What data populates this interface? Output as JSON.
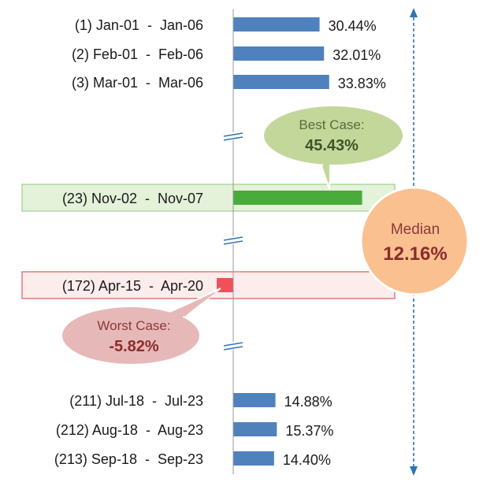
{
  "chart_data": {
    "type": "bar",
    "orientation": "horizontal",
    "categories": [
      "(1) Jan-01  -  Jan-06",
      "(2) Feb-01  -  Feb-06",
      "(3) Mar-01  -  Mar-06",
      "(23) Nov-02  -  Nov-07",
      "(172) Apr-15  -  Apr-20",
      "(211) Jul-18  -  Jul-23",
      "(212) Aug-18  -  Aug-23",
      "(213) Sep-18  -  Sep-23"
    ],
    "values": [
      30.44,
      32.01,
      33.83,
      45.43,
      -5.82,
      14.88,
      15.37,
      14.4
    ],
    "value_labels": [
      "30.44%",
      "32.01%",
      "33.83%",
      "",
      "",
      "14.88%",
      "15.37%",
      "14.40%"
    ],
    "highlight": {
      "best_index": 3,
      "worst_index": 4
    },
    "callouts": {
      "best": {
        "label": "Best Case:",
        "value": "45.43%"
      },
      "worst": {
        "label": "Worst Case:",
        "value": "-5.82%"
      },
      "median": {
        "label": "Median",
        "value": "12.16%"
      }
    },
    "axis_breaks": 3,
    "colors": {
      "bar": "#4f81bd",
      "best_bar": "#4aaa3a",
      "best_box_fill": "#e3f2d8",
      "best_box_stroke": "#8cc67a",
      "worst_bar": "#f0505a",
      "worst_box_fill": "#fdecec",
      "worst_box_stroke": "#d23c46",
      "best_bubble": "#c4d79b",
      "worst_bubble": "#e6b9b8",
      "median_bubble": "#fac090",
      "arrow": "#2e75b6"
    },
    "xlim": [
      -10,
      55
    ]
  }
}
